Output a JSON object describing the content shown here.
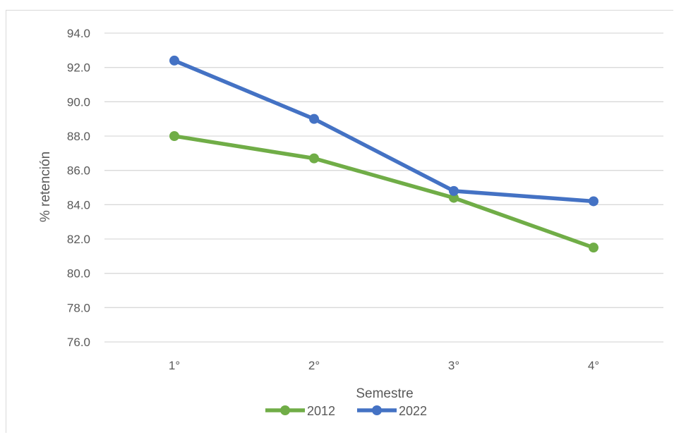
{
  "chart_data": {
    "type": "line",
    "title": "",
    "xlabel": "Semestre",
    "ylabel": "% retención",
    "categories": [
      "1°",
      "2°",
      "3°",
      "4°"
    ],
    "ylim": [
      76.0,
      94.0
    ],
    "ytick_step": 2.0,
    "grid": true,
    "legend_position": "bottom",
    "series": [
      {
        "name": "2012",
        "color": "#70ad47",
        "values": [
          88.0,
          86.7,
          84.4,
          81.5
        ]
      },
      {
        "name": "2022",
        "color": "#4472c4",
        "values": [
          92.4,
          89.0,
          84.8,
          84.2
        ]
      }
    ]
  }
}
